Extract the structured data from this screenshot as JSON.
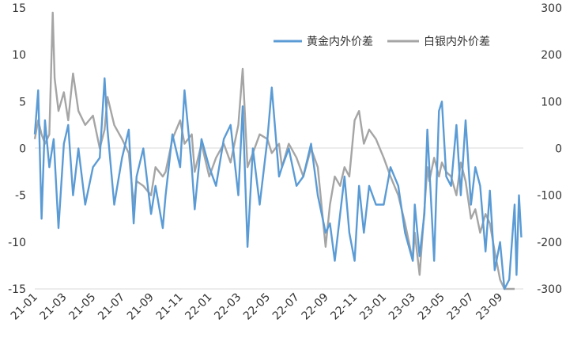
{
  "chart_data": {
    "type": "line",
    "legend_position": "top-right",
    "grid": false,
    "left_axis": {
      "ylim": [
        -15,
        15
      ],
      "ticks": [
        15,
        10,
        5,
        0,
        -5,
        -10,
        -15
      ]
    },
    "right_axis": {
      "ylim": [
        -300,
        300
      ],
      "ticks": [
        300,
        200,
        100,
        0,
        -100,
        -200,
        -300
      ]
    },
    "x_tick_labels": [
      "21-01",
      "21-03",
      "21-05",
      "21-07",
      "21-09",
      "21-11",
      "22-01",
      "22-03",
      "22-05",
      "22-07",
      "22-09",
      "22-11",
      "23-01",
      "23-03",
      "23-05",
      "23-07",
      "23-09"
    ],
    "x_range_months": [
      "2021-01",
      "2023-10"
    ],
    "series": [
      {
        "name": "黄金内外价差",
        "axis": "left",
        "color": "#5B9BD5",
        "points": [
          [
            "2021-01",
            1.5
          ],
          [
            "2021-01-08",
            6.2
          ],
          [
            "2021-01-15",
            -7.5
          ],
          [
            "2021-01-22",
            3.0
          ],
          [
            "2021-02",
            -2.0
          ],
          [
            "2021-02-10",
            1.0
          ],
          [
            "2021-02-20",
            -8.5
          ],
          [
            "2021-03",
            0.5
          ],
          [
            "2021-03-10",
            2.5
          ],
          [
            "2021-03-20",
            -5.0
          ],
          [
            "2021-04",
            0.0
          ],
          [
            "2021-04-15",
            -6.0
          ],
          [
            "2021-05",
            -2.0
          ],
          [
            "2021-05-15",
            -1.0
          ],
          [
            "2021-05-25",
            7.5
          ],
          [
            "2021-06",
            2.0
          ],
          [
            "2021-06-15",
            -6.0
          ],
          [
            "2021-07",
            -1.0
          ],
          [
            "2021-07-15",
            2.0
          ],
          [
            "2021-07-25",
            -8.0
          ],
          [
            "2021-08",
            -3.0
          ],
          [
            "2021-08-15",
            0.0
          ],
          [
            "2021-09",
            -7.0
          ],
          [
            "2021-09-10",
            -4.0
          ],
          [
            "2021-09-25",
            -8.5
          ],
          [
            "2021-10",
            -5.0
          ],
          [
            "2021-10-15",
            1.5
          ],
          [
            "2021-11",
            -2.0
          ],
          [
            "2021-11-10",
            6.2
          ],
          [
            "2021-11-25",
            -2.0
          ],
          [
            "2021-12",
            -6.5
          ],
          [
            "2021-12-15",
            1.0
          ],
          [
            "2022-01",
            -2.0
          ],
          [
            "2022-01-15",
            -4.0
          ],
          [
            "2022-02",
            1.0
          ],
          [
            "2022-02-15",
            2.5
          ],
          [
            "2022-03",
            -5.0
          ],
          [
            "2022-03-10",
            4.5
          ],
          [
            "2022-03-20",
            -10.5
          ],
          [
            "2022-04",
            0.0
          ],
          [
            "2022-04-15",
            -6.0
          ],
          [
            "2022-05",
            1.0
          ],
          [
            "2022-05-10",
            6.5
          ],
          [
            "2022-05-25",
            -3.0
          ],
          [
            "2022-06",
            -2.0
          ],
          [
            "2022-06-15",
            0.0
          ],
          [
            "2022-07",
            -4.0
          ],
          [
            "2022-07-15",
            -3.0
          ],
          [
            "2022-08",
            0.5
          ],
          [
            "2022-08-15",
            -5.0
          ],
          [
            "2022-09",
            -9.0
          ],
          [
            "2022-09-10",
            -8.0
          ],
          [
            "2022-09-20",
            -12.0
          ],
          [
            "2022-10",
            -7.0
          ],
          [
            "2022-10-10",
            -3.0
          ],
          [
            "2022-10-20",
            -9.0
          ],
          [
            "2022-11",
            -12.0
          ],
          [
            "2022-11-10",
            -4.0
          ],
          [
            "2022-11-20",
            -9.0
          ],
          [
            "2022-12",
            -4.0
          ],
          [
            "2022-12-15",
            -6.0
          ],
          [
            "2023-01",
            -6.0
          ],
          [
            "2023-01-15",
            -2.0
          ],
          [
            "2023-02",
            -4.0
          ],
          [
            "2023-02-15",
            -9.0
          ],
          [
            "2023-03",
            -12.0
          ],
          [
            "2023-03-05",
            -6.0
          ],
          [
            "2023-03-15",
            -11.5
          ],
          [
            "2023-03-25",
            -7.0
          ],
          [
            "2023-04",
            2.0
          ],
          [
            "2023-04-05",
            -2.0
          ],
          [
            "2023-04-15",
            -12.0
          ],
          [
            "2023-04-25",
            4.0
          ],
          [
            "2023-05",
            5.0
          ],
          [
            "2023-05-10",
            -3.0
          ],
          [
            "2023-05-20",
            -4.0
          ],
          [
            "2023-06",
            2.5
          ],
          [
            "2023-06-10",
            -5.0
          ],
          [
            "2023-06-20",
            3.0
          ],
          [
            "2023-07",
            -6.0
          ],
          [
            "2023-07-10",
            -2.0
          ],
          [
            "2023-07-20",
            -4.0
          ],
          [
            "2023-08",
            -11.0
          ],
          [
            "2023-08-10",
            -4.5
          ],
          [
            "2023-08-20",
            -13.0
          ],
          [
            "2023-09",
            -10.0
          ],
          [
            "2023-09-10",
            -15.0
          ],
          [
            "2023-09-20",
            -14.0
          ],
          [
            "2023-10",
            -6.0
          ],
          [
            "2023-10-05",
            -13.5
          ],
          [
            "2023-10-10",
            -5.0
          ],
          [
            "2023-10-15",
            -9.5
          ]
        ]
      },
      {
        "name": "白银内外价差",
        "axis": "right",
        "color": "#A5A5A5",
        "points": [
          [
            "2021-01",
            20
          ],
          [
            "2021-01-08",
            60
          ],
          [
            "2021-01-15",
            30
          ],
          [
            "2021-01-22",
            10
          ],
          [
            "2021-02",
            30
          ],
          [
            "2021-02-08",
            290
          ],
          [
            "2021-02-12",
            150
          ],
          [
            "2021-02-20",
            80
          ],
          [
            "2021-03",
            120
          ],
          [
            "2021-03-10",
            60
          ],
          [
            "2021-03-20",
            160
          ],
          [
            "2021-04",
            80
          ],
          [
            "2021-04-15",
            50
          ],
          [
            "2021-05",
            70
          ],
          [
            "2021-05-15",
            0
          ],
          [
            "2021-05-25",
            40
          ],
          [
            "2021-06",
            110
          ],
          [
            "2021-06-15",
            50
          ],
          [
            "2021-07",
            20
          ],
          [
            "2021-07-15",
            -10
          ],
          [
            "2021-07-25",
            -120
          ],
          [
            "2021-08",
            -70
          ],
          [
            "2021-08-15",
            -80
          ],
          [
            "2021-09",
            -100
          ],
          [
            "2021-09-10",
            -40
          ],
          [
            "2021-09-25",
            -60
          ],
          [
            "2021-10",
            -50
          ],
          [
            "2021-10-15",
            20
          ],
          [
            "2021-11",
            60
          ],
          [
            "2021-11-10",
            10
          ],
          [
            "2021-11-25",
            30
          ],
          [
            "2021-12",
            -50
          ],
          [
            "2021-12-15",
            10
          ],
          [
            "2022-01",
            -60
          ],
          [
            "2022-01-15",
            -20
          ],
          [
            "2022-02",
            10
          ],
          [
            "2022-02-15",
            -30
          ],
          [
            "2022-03",
            50
          ],
          [
            "2022-03-10",
            170
          ],
          [
            "2022-03-20",
            -40
          ],
          [
            "2022-04",
            -10
          ],
          [
            "2022-04-15",
            30
          ],
          [
            "2022-05",
            20
          ],
          [
            "2022-05-10",
            -10
          ],
          [
            "2022-05-25",
            10
          ],
          [
            "2022-06",
            -40
          ],
          [
            "2022-06-15",
            10
          ],
          [
            "2022-07",
            -20
          ],
          [
            "2022-07-15",
            -60
          ],
          [
            "2022-08",
            0
          ],
          [
            "2022-08-15",
            -40
          ],
          [
            "2022-09",
            -210
          ],
          [
            "2022-09-10",
            -120
          ],
          [
            "2022-09-20",
            -60
          ],
          [
            "2022-10",
            -80
          ],
          [
            "2022-10-10",
            -40
          ],
          [
            "2022-10-20",
            -60
          ],
          [
            "2022-11",
            60
          ],
          [
            "2022-11-10",
            80
          ],
          [
            "2022-11-20",
            10
          ],
          [
            "2022-12",
            40
          ],
          [
            "2022-12-15",
            20
          ],
          [
            "2023-01",
            -20
          ],
          [
            "2023-01-15",
            -60
          ],
          [
            "2023-02",
            -100
          ],
          [
            "2023-02-15",
            -160
          ],
          [
            "2023-03",
            -240
          ],
          [
            "2023-03-05",
            -180
          ],
          [
            "2023-03-15",
            -270
          ],
          [
            "2023-03-25",
            -130
          ],
          [
            "2023-04",
            -40
          ],
          [
            "2023-04-05",
            -70
          ],
          [
            "2023-04-15",
            -20
          ],
          [
            "2023-04-25",
            -60
          ],
          [
            "2023-05",
            -30
          ],
          [
            "2023-05-10",
            -50
          ],
          [
            "2023-05-20",
            -60
          ],
          [
            "2023-06",
            -100
          ],
          [
            "2023-06-10",
            -30
          ],
          [
            "2023-06-20",
            -70
          ],
          [
            "2023-07",
            -150
          ],
          [
            "2023-07-10",
            -130
          ],
          [
            "2023-07-20",
            -180
          ],
          [
            "2023-08",
            -140
          ],
          [
            "2023-08-10",
            -160
          ],
          [
            "2023-08-20",
            -220
          ],
          [
            "2023-09",
            -280
          ],
          [
            "2023-09-10",
            -320
          ],
          [
            "2023-09-20",
            -300
          ],
          [
            "2023-10",
            -300
          ]
        ]
      }
    ]
  }
}
